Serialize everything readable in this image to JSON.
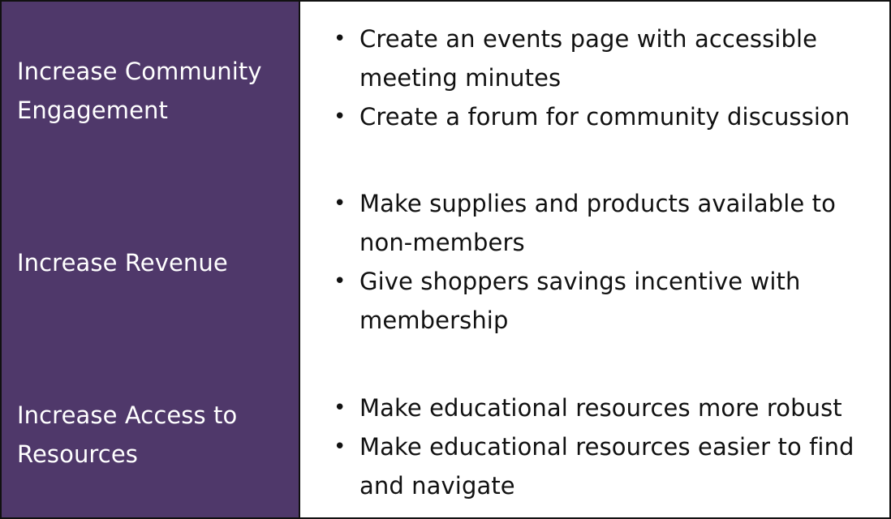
{
  "colors": {
    "left_background": "#4f386a",
    "left_text": "#ffffff",
    "right_text": "#111111",
    "border": "#111111"
  },
  "rows": [
    {
      "goal_lines": [
        "Increase Community",
        "Engagement"
      ],
      "actions": [
        {
          "lines": [
            "Create an events page with accessible",
            "meeting minutes"
          ]
        },
        {
          "lines": [
            "Create a forum for community discussion"
          ]
        }
      ]
    },
    {
      "goal_lines": [
        "Increase Revenue"
      ],
      "actions": [
        {
          "lines": [
            "Make supplies and products available to",
            "non-members"
          ]
        },
        {
          "lines": [
            "Give shoppers savings incentive with",
            "membership"
          ]
        }
      ]
    },
    {
      "goal_lines": [
        "Increase Access to",
        "Resources"
      ],
      "actions": [
        {
          "lines": [
            "Make educational resources more robust"
          ]
        },
        {
          "lines": [
            "Make educational resources easier to find",
            "and navigate"
          ]
        }
      ]
    }
  ],
  "bullet_glyph": "•"
}
